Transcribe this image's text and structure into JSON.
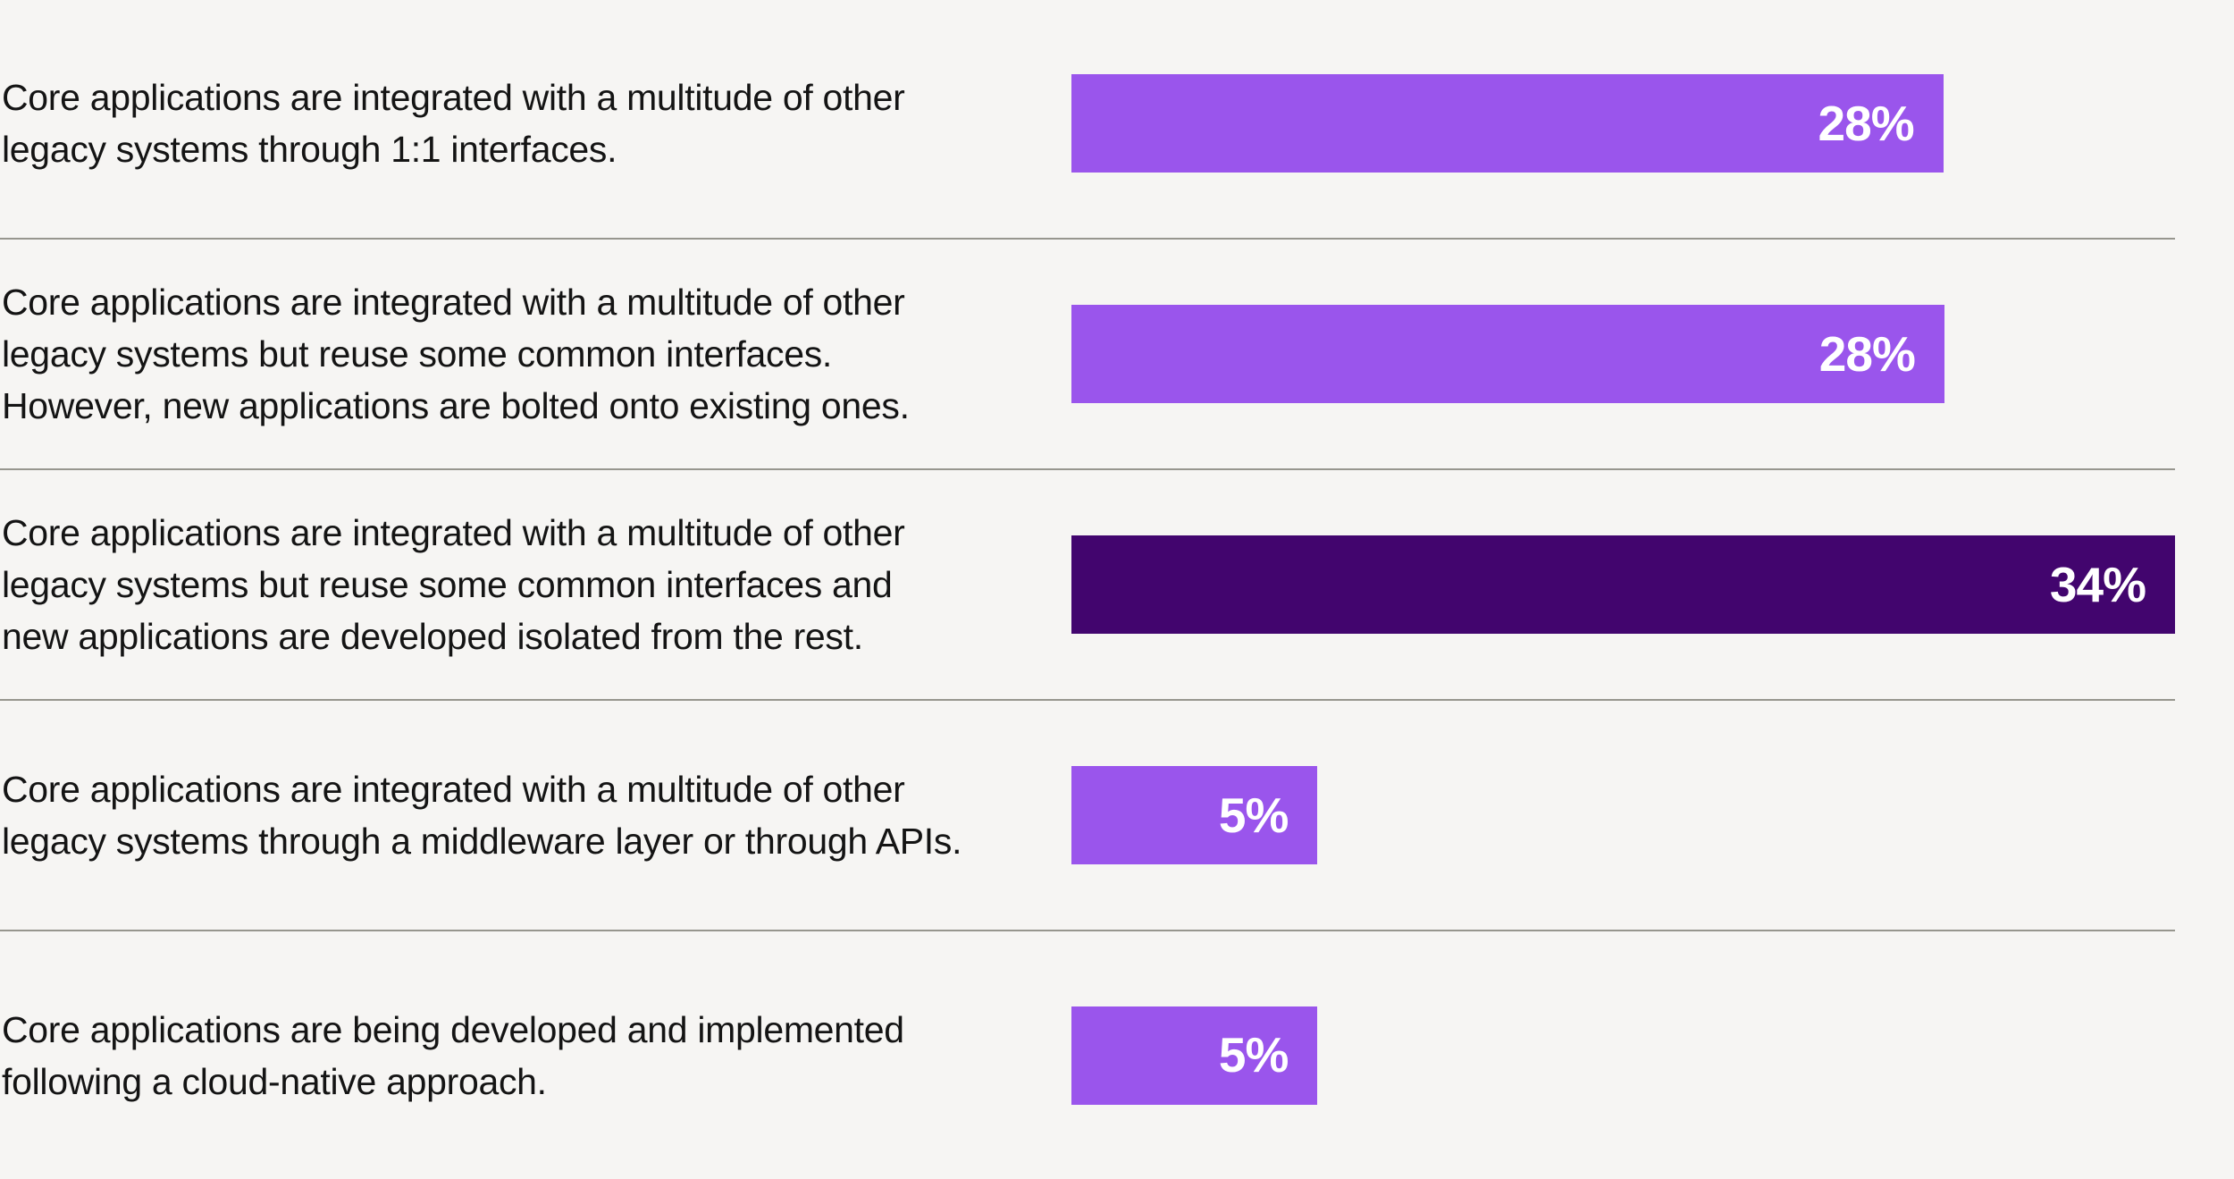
{
  "page": {
    "background_color": "#F6F5F3",
    "divider_color": "#97968E",
    "text_color": "#141414"
  },
  "chart_data": {
    "type": "bar",
    "orientation": "horizontal",
    "title": "",
    "xlabel": "",
    "ylabel": "",
    "unit": "%",
    "gridlines": false,
    "legend": null,
    "value_label_position": "inside-right",
    "categories": [
      "Core applications are integrated with a multitude of other\nlegacy systems through 1:1 interfaces.",
      "Core applications are integrated with a multitude of other\nlegacy systems but reuse some common interfaces.\nHowever, new applications are bolted onto existing ones.",
      "Core applications are integrated with a multitude of other\nlegacy systems but reuse some common interfaces and\nnew applications are developed isolated from the rest.",
      "Core applications are integrated with a multitude of other\nlegacy systems through a middleware layer or through APIs.",
      "Core applications are being developed and implemented\nfollowing a cloud-native approach."
    ],
    "values": [
      28,
      28,
      34,
      5,
      5
    ],
    "value_labels": [
      "28%",
      "28%",
      "34%",
      "5%",
      "5%"
    ],
    "bar_colors": [
      "#9A55EC",
      "#9A55EC",
      "#42056E",
      "#9A55EC",
      "#9A55EC"
    ],
    "highlighted_index": 2,
    "bar_width_pct_of_track": [
      79,
      79.1,
      100,
      22.3,
      22.3
    ],
    "x_axis_range": [
      0,
      34
    ]
  }
}
